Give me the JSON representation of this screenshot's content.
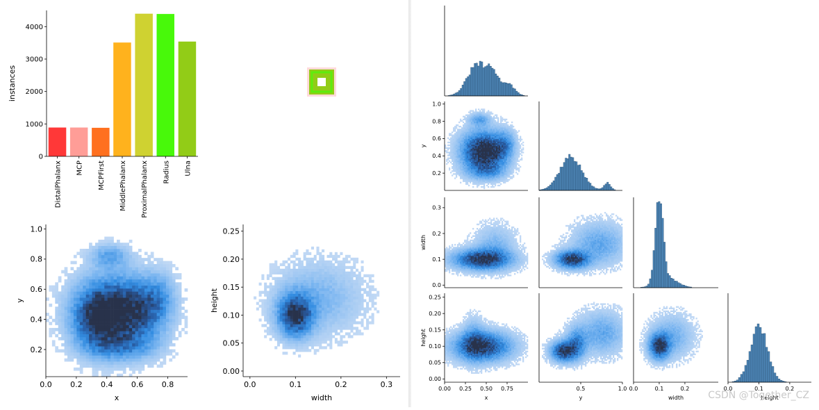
{
  "watermark": "CSDN @Together_CZ",
  "chart_data": [
    {
      "id": "class_bar",
      "type": "bar",
      "categories": [
        "DistalPhalanx",
        "MCP",
        "MCPFirst",
        "MiddlePhalanx",
        "ProximalPhalanx",
        "Radius",
        "Ulna"
      ],
      "values": [
        890,
        890,
        880,
        3510,
        4400,
        4390,
        3540
      ],
      "colors": [
        "#ff3838",
        "#ff9d97",
        "#ff701f",
        "#ffb21d",
        "#cfd231",
        "#48f90a",
        "#92cc17"
      ],
      "ylabel": "instances",
      "ylim": [
        0,
        4500
      ],
      "yticks": [
        0,
        1000,
        2000,
        3000,
        4000
      ],
      "ytick_labels": [
        "0",
        "1000",
        "2000",
        "3000",
        "4000"
      ]
    },
    {
      "id": "box_preview",
      "type": "other",
      "colors": [
        "#92cc17",
        "#48f90a",
        "#ff3838"
      ]
    },
    {
      "id": "xy_hist",
      "type": "heatmap",
      "xlabel": "x",
      "ylabel": "y",
      "xlim": [
        0.0,
        0.93
      ],
      "ylim": [
        0.02,
        1.03
      ],
      "xticks": [
        0.0,
        0.2,
        0.4,
        0.6,
        0.8
      ],
      "xtick_labels": [
        "0.0",
        "0.2",
        "0.4",
        "0.6",
        "0.8"
      ],
      "yticks": [
        0.2,
        0.4,
        0.6,
        0.8,
        1.0
      ],
      "ytick_labels": [
        "0.2",
        "0.4",
        "0.6",
        "0.8",
        "1.0"
      ],
      "blobs": [
        {
          "cx": 0.42,
          "cy": 0.45,
          "sx": 0.15,
          "sy": 0.15,
          "w": 1.0
        },
        {
          "cx": 0.33,
          "cy": 0.38,
          "sx": 0.09,
          "sy": 0.12,
          "w": 0.5
        },
        {
          "cx": 0.62,
          "cy": 0.45,
          "sx": 0.12,
          "sy": 0.14,
          "w": 0.55
        },
        {
          "cx": 0.42,
          "cy": 0.82,
          "sx": 0.08,
          "sy": 0.05,
          "w": 0.35
        },
        {
          "cx": 0.74,
          "cy": 0.55,
          "sx": 0.07,
          "sy": 0.1,
          "w": 0.3
        },
        {
          "cx": 0.5,
          "cy": 0.22,
          "sx": 0.14,
          "sy": 0.06,
          "w": 0.35
        }
      ]
    },
    {
      "id": "wh_hist",
      "type": "heatmap",
      "xlabel": "width",
      "ylabel": "height",
      "xlim": [
        -0.015,
        0.33
      ],
      "ylim": [
        -0.01,
        0.262
      ],
      "xticks": [
        0.0,
        0.1,
        0.2,
        0.3
      ],
      "xtick_labels": [
        "0.0",
        "0.1",
        "0.2",
        "0.3"
      ],
      "yticks": [
        0.0,
        0.05,
        0.1,
        0.15,
        0.2,
        0.25
      ],
      "ytick_labels": [
        "0.00",
        "0.05",
        "0.10",
        "0.15",
        "0.20",
        "0.25"
      ],
      "blobs": [
        {
          "cx": 0.1,
          "cy": 0.1,
          "sx": 0.025,
          "sy": 0.025,
          "w": 1.0
        },
        {
          "cx": 0.15,
          "cy": 0.13,
          "sx": 0.06,
          "sy": 0.04,
          "w": 0.25
        }
      ]
    },
    {
      "id": "pair_x_hist",
      "type": "bar",
      "xlim": [
        0.0,
        1.0
      ],
      "peaks": [
        {
          "mu": 0.4,
          "sigma": 0.12,
          "w": 1.0
        },
        {
          "mu": 0.58,
          "sigma": 0.06,
          "w": 0.5
        },
        {
          "mu": 0.75,
          "sigma": 0.08,
          "w": 0.4
        }
      ]
    },
    {
      "id": "pair_y_hist",
      "type": "bar",
      "xlim": [
        0.0,
        1.0
      ],
      "peaks": [
        {
          "mu": 0.38,
          "sigma": 0.13,
          "w": 1.0
        },
        {
          "mu": 0.82,
          "sigma": 0.04,
          "w": 0.22
        }
      ]
    },
    {
      "id": "pair_width_hist",
      "type": "bar",
      "xlim": [
        0.0,
        0.33
      ],
      "peaks": [
        {
          "mu": 0.1,
          "sigma": 0.015,
          "w": 1.0
        },
        {
          "mu": 0.13,
          "sigma": 0.04,
          "w": 0.12
        }
      ]
    },
    {
      "id": "pair_height_hist",
      "type": "bar",
      "xlim": [
        0.0,
        0.27
      ],
      "peaks": [
        {
          "mu": 0.1,
          "sigma": 0.028,
          "w": 1.0
        }
      ]
    },
    {
      "id": "pair_y_vs_x",
      "type": "heatmap",
      "ylabel": "y",
      "xlim": [
        0.0,
        1.0
      ],
      "ylim": [
        0.0,
        1.03
      ],
      "yticks": [
        0.2,
        0.4,
        0.6,
        0.8,
        1.0
      ],
      "ytick_labels": [
        "0.2",
        "0.4",
        "0.6",
        "0.8",
        "1.0"
      ],
      "blobs": [
        {
          "cx": 0.42,
          "cy": 0.45,
          "sx": 0.15,
          "sy": 0.15,
          "w": 1.0
        },
        {
          "cx": 0.62,
          "cy": 0.45,
          "sx": 0.12,
          "sy": 0.14,
          "w": 0.55
        },
        {
          "cx": 0.42,
          "cy": 0.82,
          "sx": 0.08,
          "sy": 0.05,
          "w": 0.35
        },
        {
          "cx": 0.74,
          "cy": 0.55,
          "sx": 0.07,
          "sy": 0.1,
          "w": 0.3
        },
        {
          "cx": 0.5,
          "cy": 0.22,
          "sx": 0.14,
          "sy": 0.06,
          "w": 0.35
        }
      ]
    },
    {
      "id": "pair_width_vs_x",
      "type": "heatmap",
      "ylabel": "width",
      "xlim": [
        0.0,
        1.0
      ],
      "ylim": [
        -0.01,
        0.34
      ],
      "yticks": [
        0.0,
        0.1,
        0.2,
        0.3
      ],
      "ytick_labels": [
        "0.0",
        "0.1",
        "0.2",
        "0.3"
      ],
      "blobs": [
        {
          "cx": 0.45,
          "cy": 0.1,
          "sx": 0.22,
          "sy": 0.025,
          "w": 1.0
        },
        {
          "cx": 0.6,
          "cy": 0.15,
          "sx": 0.15,
          "sy": 0.05,
          "w": 0.25
        }
      ]
    },
    {
      "id": "pair_width_vs_y",
      "type": "heatmap",
      "xlim": [
        0.0,
        1.0
      ],
      "ylim": [
        -0.01,
        0.34
      ],
      "blobs": [
        {
          "cx": 0.4,
          "cy": 0.1,
          "sx": 0.13,
          "sy": 0.022,
          "w": 1.0
        },
        {
          "cx": 0.72,
          "cy": 0.16,
          "sx": 0.2,
          "sy": 0.05,
          "w": 0.35
        }
      ]
    },
    {
      "id": "pair_height_vs_x",
      "type": "heatmap",
      "ylabel": "height",
      "xlabel": "x",
      "xlim": [
        0.0,
        1.0
      ],
      "ylim": [
        -0.01,
        0.262
      ],
      "xticks": [
        0.0,
        0.25,
        0.5,
        0.75
      ],
      "xtick_labels": [
        "0.00",
        "0.25",
        "0.50",
        "0.75"
      ],
      "yticks": [
        0.0,
        0.05,
        0.1,
        0.15,
        0.2,
        0.25
      ],
      "ytick_labels": [
        "0.00",
        "0.05",
        "0.10",
        "0.15",
        "0.20",
        "0.25"
      ],
      "blobs": [
        {
          "cx": 0.45,
          "cy": 0.1,
          "sx": 0.22,
          "sy": 0.028,
          "w": 1.0
        },
        {
          "cx": 0.35,
          "cy": 0.12,
          "sx": 0.08,
          "sy": 0.04,
          "w": 0.3
        }
      ]
    },
    {
      "id": "pair_height_vs_y",
      "type": "heatmap",
      "xlabel": "y",
      "xlim": [
        0.0,
        1.0
      ],
      "ylim": [
        -0.01,
        0.262
      ],
      "xticks": [
        0.5,
        1.0
      ],
      "xtick_labels": [
        "0.5",
        "1.0"
      ],
      "blobs": [
        {
          "cx": 0.3,
          "cy": 0.085,
          "sx": 0.1,
          "sy": 0.02,
          "w": 1.0
        },
        {
          "cx": 0.45,
          "cy": 0.11,
          "sx": 0.08,
          "sy": 0.03,
          "w": 0.5
        },
        {
          "cx": 0.75,
          "cy": 0.14,
          "sx": 0.18,
          "sy": 0.04,
          "w": 0.35
        }
      ]
    },
    {
      "id": "pair_height_vs_width",
      "type": "heatmap",
      "xlabel": "width",
      "xlim": [
        0.0,
        0.33
      ],
      "ylim": [
        -0.01,
        0.262
      ],
      "xticks": [
        0.0,
        0.1,
        0.2
      ],
      "xtick_labels": [
        "0.0",
        "0.1",
        "0.2"
      ],
      "blobs": [
        {
          "cx": 0.1,
          "cy": 0.1,
          "sx": 0.025,
          "sy": 0.025,
          "w": 1.0
        },
        {
          "cx": 0.15,
          "cy": 0.13,
          "sx": 0.05,
          "sy": 0.04,
          "w": 0.3
        }
      ]
    },
    {
      "id": "pair_height_diag_axis",
      "type": "bar",
      "xlabel": "height",
      "xlim": [
        0.0,
        0.27
      ],
      "xticks": [
        0.0,
        0.1,
        0.2
      ],
      "xtick_labels": [
        "0.0",
        "0.1",
        "0.2"
      ]
    }
  ]
}
